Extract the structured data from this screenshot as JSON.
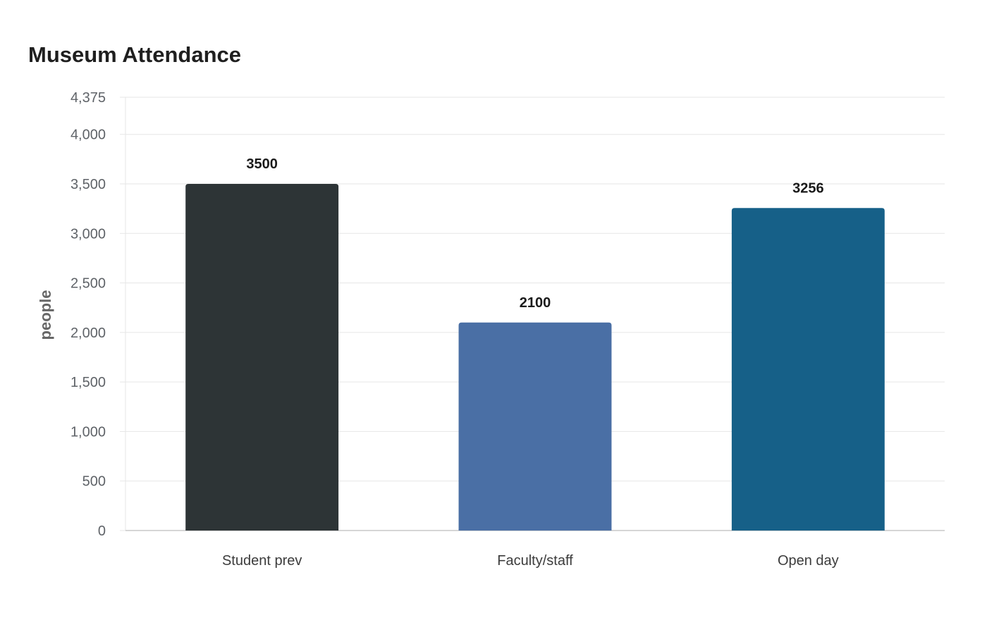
{
  "chart_data": {
    "type": "bar",
    "title": "Museum Attendance",
    "xlabel": "",
    "ylabel": "people",
    "categories": [
      "Student prev",
      "Faculty/staff",
      "Open day"
    ],
    "values": [
      3500,
      2100,
      3256
    ],
    "data_labels": [
      "3500",
      "2100",
      "3256"
    ],
    "bar_colors": [
      "#2d3436",
      "#4a6fa5",
      "#166088"
    ],
    "ylim": [
      0,
      4375
    ],
    "yticks": [
      0,
      500,
      1000,
      1500,
      2000,
      2500,
      3000,
      3500,
      4000,
      4375
    ],
    "ytick_labels": [
      "0",
      "500",
      "1,000",
      "1,500",
      "2,000",
      "2,500",
      "3,000",
      "3,500",
      "4,000",
      "4,375"
    ],
    "grid": true,
    "legend": "none"
  },
  "colors": {
    "grid": "#e6e6e6",
    "axis": "#c8c8c8"
  }
}
